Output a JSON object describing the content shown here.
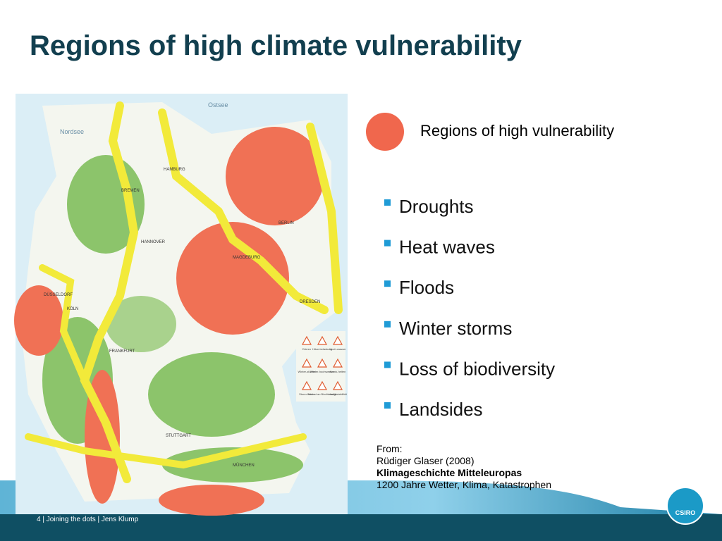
{
  "header": {
    "title": "Regions of high climate vulnerability"
  },
  "legend": {
    "label": "Regions of high vulnerability"
  },
  "bullets": [
    "Droughts",
    "Heat waves",
    "Floods",
    "Winter storms",
    "Loss of biodiversity",
    "Landsides"
  ],
  "source": {
    "lines": [
      "From:",
      "Rüdiger Glaser (2008)",
      "Klimageschichte Mitteleuropas",
      "1200 Jahre Wetter, Klima, Katastrophen"
    ]
  },
  "map": {
    "labels": [
      "Nordsee",
      "Ostsee",
      "HAMBURG",
      "BREMEN",
      "BERLIN",
      "HANNOVER",
      "MAGDEBURG",
      "DÜSSELDORF",
      "KÖLN",
      "DRESDEN",
      "FRANKFURT",
      "STUTTGART",
      "MÜNCHEN"
    ],
    "legend": [
      "Dürren",
      "Hitze-belastung",
      "Hoch-wasser",
      "Winter-stürme",
      "Winter-hochwasser",
      "Krank-heiten",
      "Sturm-fluten",
      "Verlust an Biodiversität",
      "Hang-stabilität"
    ]
  },
  "footer": {
    "text": "4  |  Joining the dots  |  Jens Klump",
    "logo": "CSIRO"
  }
}
